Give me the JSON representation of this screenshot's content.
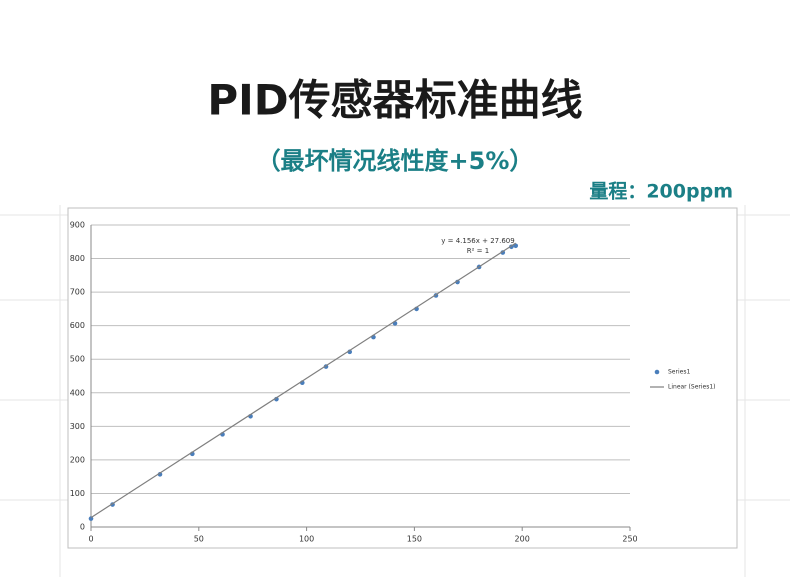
{
  "header": {
    "title": "PID传感器标准曲线",
    "subtitle": "（最坏情况线性度+5%）",
    "range": "量程：200ppm"
  },
  "chart_data": {
    "type": "scatter",
    "series": [
      {
        "name": "Series1",
        "color": "#4a7ebb",
        "x": [
          0,
          10,
          32,
          47,
          61,
          74,
          86,
          98,
          109,
          120,
          131,
          141,
          151,
          160,
          170,
          180,
          191,
          195,
          197
        ],
        "values": [
          25,
          67,
          157,
          218,
          276,
          330,
          381,
          430,
          478,
          522,
          566,
          607,
          650,
          690,
          730,
          775,
          818,
          835,
          838
        ]
      },
      {
        "name": "Linear (Series1)",
        "color": "#7f7f7f",
        "line": true,
        "x": [
          0,
          197
        ],
        "values": [
          28,
          846
        ]
      }
    ],
    "annotations": [
      "y = 4.156x + 27.609",
      "R² = 1"
    ],
    "xlim": [
      0,
      250
    ],
    "xticks": [
      0,
      50,
      100,
      150,
      200,
      250
    ],
    "ylim": [
      0,
      900
    ],
    "yticks": [
      0,
      100,
      200,
      300,
      400,
      500,
      600,
      700,
      800,
      900
    ],
    "grid": true,
    "legend": "right"
  }
}
